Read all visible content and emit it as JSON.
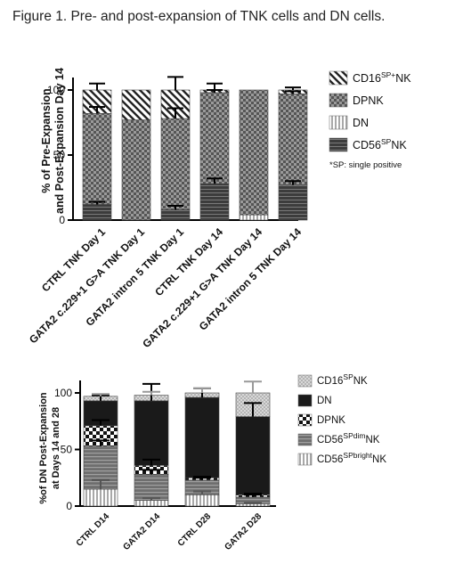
{
  "figure_title": "Figure 1. Pre- and post-expansion of TNK cells and DN cells.",
  "chart_data": [
    {
      "type": "bar",
      "stacked": true,
      "ylabel_lines": [
        "% of Pre-Expansion",
        "and Post-Expansion Day 14"
      ],
      "ylim": [
        0,
        100
      ],
      "yticks": [
        "0",
        "50",
        "100"
      ],
      "categories": [
        "CTRL TNK Day 1",
        "GATA2 c.229+1 G>A TNK Day 1",
        "GATA2 intron 5 TNK Day 1",
        "CTRL TNK Day 14",
        "GATA2 c.229+1 G>A TNK Day 14",
        "GATA2 intron 5 TNK Day 14"
      ],
      "series": [
        {
          "key": "cd56",
          "values": [
            12,
            0,
            8,
            28,
            0,
            27
          ],
          "errors": [
            2,
            0,
            3,
            4,
            0,
            3
          ]
        },
        {
          "key": "dn",
          "values": [
            0,
            0,
            0,
            0,
            4,
            0
          ],
          "errors": [
            0,
            0,
            0,
            0,
            0,
            0
          ]
        },
        {
          "key": "dpnk",
          "values": [
            70,
            77,
            70,
            70,
            96,
            70
          ],
          "errors": [
            5,
            0,
            8,
            2,
            0,
            2
          ]
        },
        {
          "key": "cd16",
          "values": [
            18,
            23,
            22,
            2,
            0,
            3
          ],
          "errors": [
            5,
            0,
            10,
            5,
            0,
            2
          ]
        }
      ],
      "legend": [
        {
          "key": "cd16",
          "text": "CD16",
          "sup": "SP+",
          "suffix": "NK"
        },
        {
          "key": "dpnk",
          "text": "DPNK",
          "sup": "",
          "suffix": ""
        },
        {
          "key": "dn",
          "text": "DN",
          "sup": "",
          "suffix": ""
        },
        {
          "key": "cd56",
          "text": "CD56",
          "sup": "SP",
          "suffix": "NK"
        }
      ],
      "note": "*SP: single positive",
      "legend_position": "right"
    },
    {
      "type": "bar",
      "stacked": true,
      "ylabel_lines": [
        "%of DN Post-Expansion",
        "at Days 14 and 28"
      ],
      "ylim": [
        0,
        100
      ],
      "yticks": [
        "0",
        "50",
        "100"
      ],
      "categories": [
        "CTRL D14",
        "GATA2 D14",
        "CTRL D28",
        "GATA2 D28"
      ],
      "series": [
        {
          "key": "cd56bright",
          "values": [
            15,
            5,
            10,
            2
          ],
          "errors": [
            8,
            2,
            3,
            1
          ]
        },
        {
          "key": "cd56dim",
          "values": [
            38,
            23,
            13,
            6
          ],
          "errors": [
            5,
            4,
            2,
            2
          ]
        },
        {
          "key": "dpnk",
          "values": [
            18,
            8,
            2,
            2
          ],
          "errors": [
            5,
            5,
            1,
            1
          ]
        },
        {
          "key": "dn",
          "values": [
            22,
            57,
            71,
            69
          ],
          "errors": [
            5,
            15,
            8,
            12
          ]
        },
        {
          "key": "cd16",
          "values": [
            4,
            5,
            4,
            21
          ],
          "errors": [
            2,
            3,
            4,
            10
          ]
        }
      ],
      "legend": [
        {
          "key": "cd16",
          "text": "CD16",
          "sup": "SP",
          "suffix": "NK"
        },
        {
          "key": "dn",
          "text": "DN",
          "sup": "",
          "suffix": ""
        },
        {
          "key": "dpnk",
          "text": "DPNK",
          "sup": "",
          "suffix": ""
        },
        {
          "key": "cd56dim",
          "text": "CD56",
          "sup": "SPdim",
          "suffix": "NK"
        },
        {
          "key": "cd56bright",
          "text": "CD56",
          "sup": "SPbright",
          "suffix": "NK"
        }
      ],
      "legend_position": "right"
    }
  ]
}
